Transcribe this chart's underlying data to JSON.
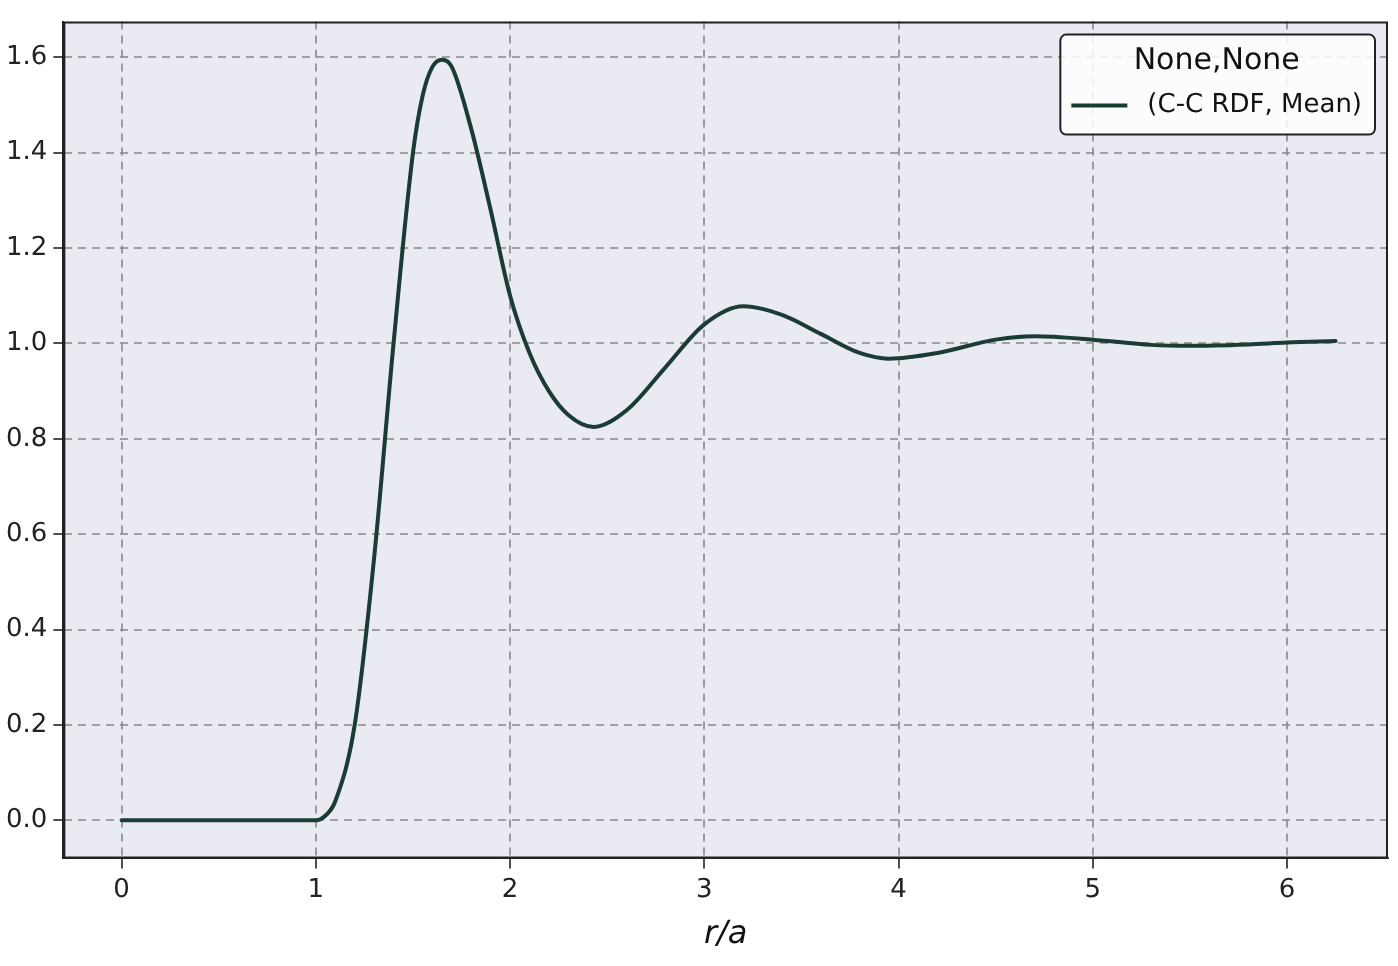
{
  "chart_data": {
    "type": "line",
    "xlabel": "r/a",
    "legend_title": "None,None",
    "legend": "top right",
    "grid": true,
    "marker": "none",
    "line_style": "solid",
    "xlim": [
      -0.3,
      6.52
    ],
    "ylim": [
      -0.08,
      1.675
    ],
    "xticks": [
      0,
      1,
      2,
      3,
      4,
      5,
      6
    ],
    "yticks": [
      {
        "value": 0,
        "label": "0.0"
      },
      0.2,
      0.4,
      0.6,
      0.8,
      {
        "value": 1,
        "label": "1.0"
      },
      1.2,
      1.4,
      1.6
    ],
    "x": [
      0,
      0.5,
      1.0,
      1.05,
      1.1,
      1.2,
      1.3,
      1.4,
      1.5,
      1.55,
      1.6,
      1.65,
      1.7,
      1.8,
      1.9,
      2.0,
      2.1,
      2.2,
      2.3,
      2.43,
      2.6,
      2.8,
      3.0,
      3.2,
      3.4,
      3.6,
      3.8,
      3.95,
      4.2,
      4.5,
      4.7,
      5.0,
      5.3,
      5.5,
      5.8,
      6.0,
      6.25
    ],
    "series": [
      {
        "name": "(C-C RDF, Mean)",
        "color": "#1b3b35",
        "values": [
          0,
          0,
          0,
          0.01,
          0.04,
          0.2,
          0.55,
          1.0,
          1.4,
          1.52,
          1.58,
          1.595,
          1.58,
          1.45,
          1.28,
          1.1,
          0.98,
          0.9,
          0.85,
          0.825,
          0.86,
          0.95,
          1.04,
          1.078,
          1.06,
          1.02,
          0.98,
          0.968,
          0.98,
          1.008,
          1.015,
          1.008,
          0.997,
          0.995,
          0.998,
          1.002,
          1.005
        ]
      }
    ]
  }
}
